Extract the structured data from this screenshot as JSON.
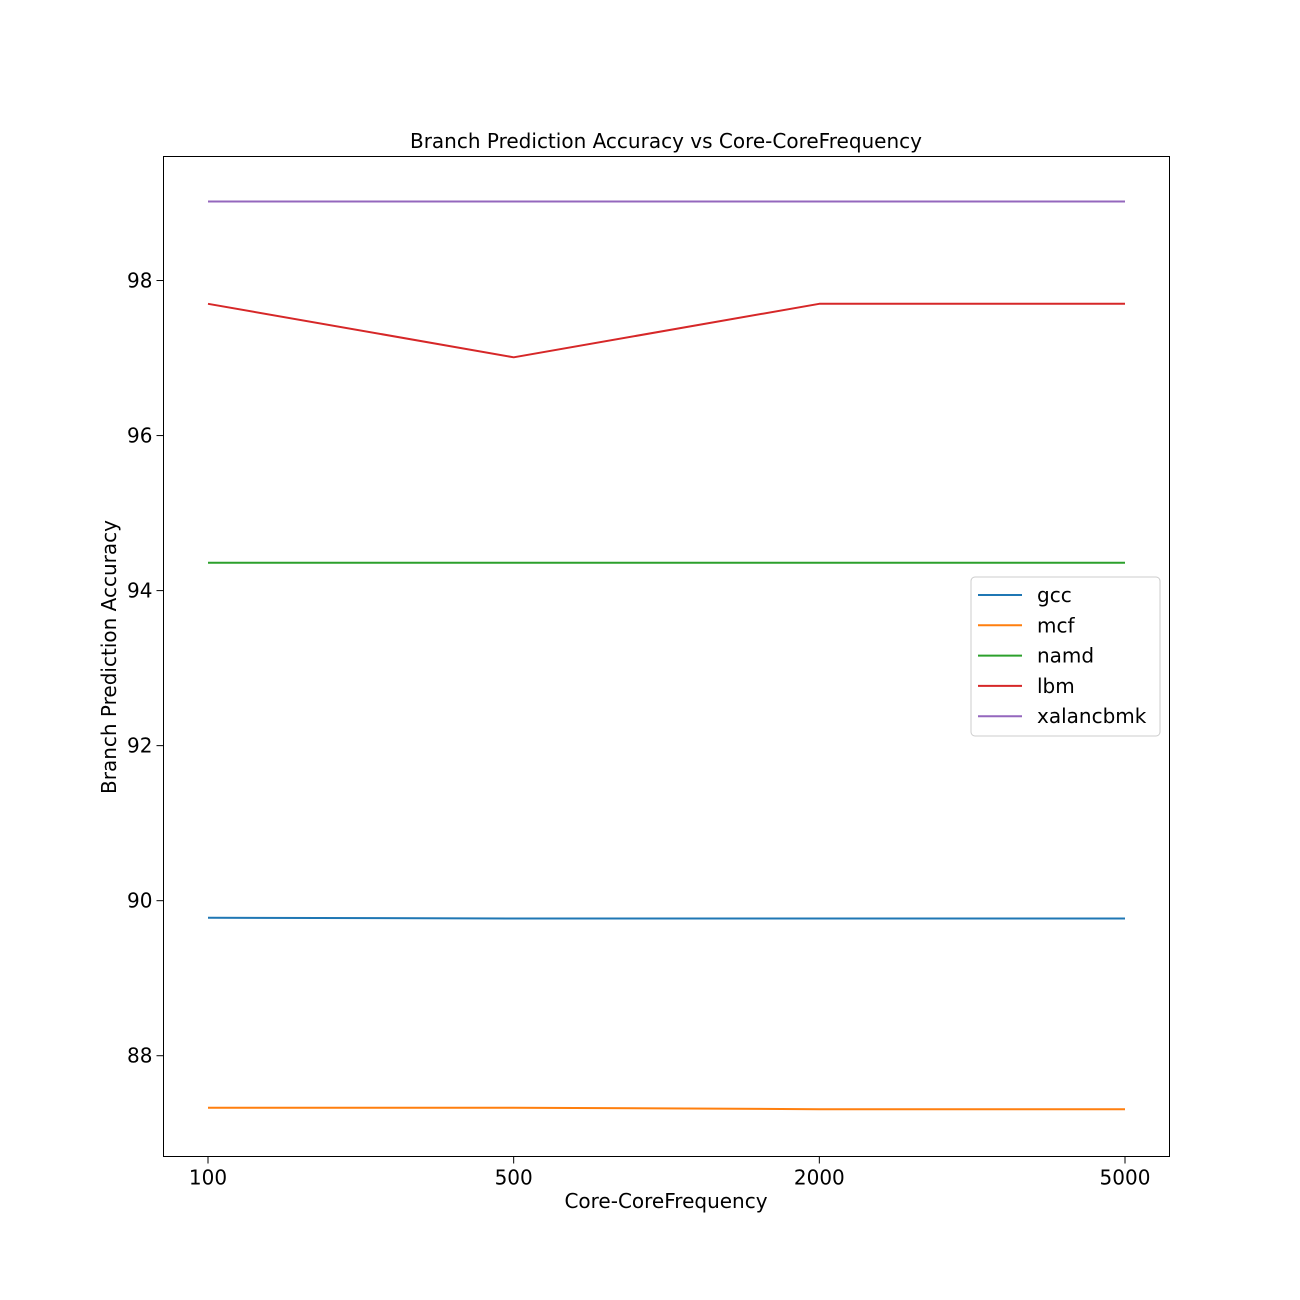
{
  "chart_data": {
    "type": "line",
    "title": "Branch Prediction Accuracy vs Core-CoreFrequency",
    "xlabel": "Core-CoreFrequency",
    "ylabel": "Branch Prediction Accuracy",
    "categories": [
      "100",
      "500",
      "2000",
      "5000"
    ],
    "y_ticks": [
      88,
      90,
      92,
      94,
      96,
      98
    ],
    "ylim": [
      86.7,
      99.6
    ],
    "grid": false,
    "legend_position": "center-right",
    "series": [
      {
        "name": "gcc",
        "color": "#1f77b4",
        "values": [
          89.78,
          89.77,
          89.77,
          89.77
        ]
      },
      {
        "name": "mcf",
        "color": "#ff7f0e",
        "values": [
          87.33,
          87.33,
          87.31,
          87.31
        ]
      },
      {
        "name": "namd",
        "color": "#2ca02c",
        "values": [
          94.36,
          94.36,
          94.36,
          94.36
        ]
      },
      {
        "name": "lbm",
        "color": "#d62728",
        "values": [
          97.7,
          97.01,
          97.7,
          97.7
        ]
      },
      {
        "name": "xalancbmk",
        "color": "#9467bd",
        "values": [
          99.02,
          99.02,
          99.02,
          99.02
        ]
      }
    ]
  }
}
